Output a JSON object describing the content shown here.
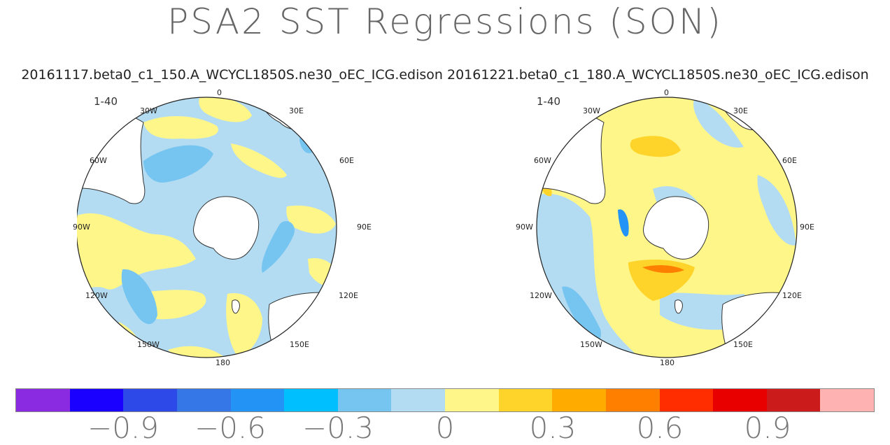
{
  "title": "PSA2 SST Regressions (SON)",
  "case_line": "20161117.beta0_c1_150.A_WCYCL1850S.ne30_oEC_ICG.edison 20161221.beta0_c1_180.A_WCYCL1850S.ne30_oEC_ICG.edison",
  "maps": [
    {
      "case": "20161117.beta0_c1_150.A_WCYCL1850S.ne30_oEC_ICG.edison",
      "period": "1-40",
      "longitude_labels": [
        "0",
        "30E",
        "60E",
        "90E",
        "120E",
        "150E",
        "180",
        "150W",
        "120W",
        "90W",
        "60W",
        "30W"
      ]
    },
    {
      "case": "20161221.beta0_c1_180.A_WCYCL1850S.ne30_oEC_ICG.edison",
      "period": "1-40",
      "longitude_labels": [
        "0",
        "30E",
        "60E",
        "90E",
        "120E",
        "150E",
        "180",
        "150W",
        "120W",
        "90W",
        "60W",
        "30W"
      ]
    }
  ],
  "colorbar": {
    "colors": [
      "#8a2be2",
      "#1a00ff",
      "#2d4ae8",
      "#3577e6",
      "#2393f5",
      "#00bfff",
      "#76c5f0",
      "#b3dcf2",
      "#fff68a",
      "#ffd42a",
      "#ffab00",
      "#ff7f00",
      "#ff2d00",
      "#e80000",
      "#cc1b1b",
      "#ffb2b2"
    ],
    "tick_labels": [
      "−0.9",
      "−0.6",
      "−0.3",
      "0",
      "0.3",
      "0.6",
      "0.9"
    ]
  }
}
